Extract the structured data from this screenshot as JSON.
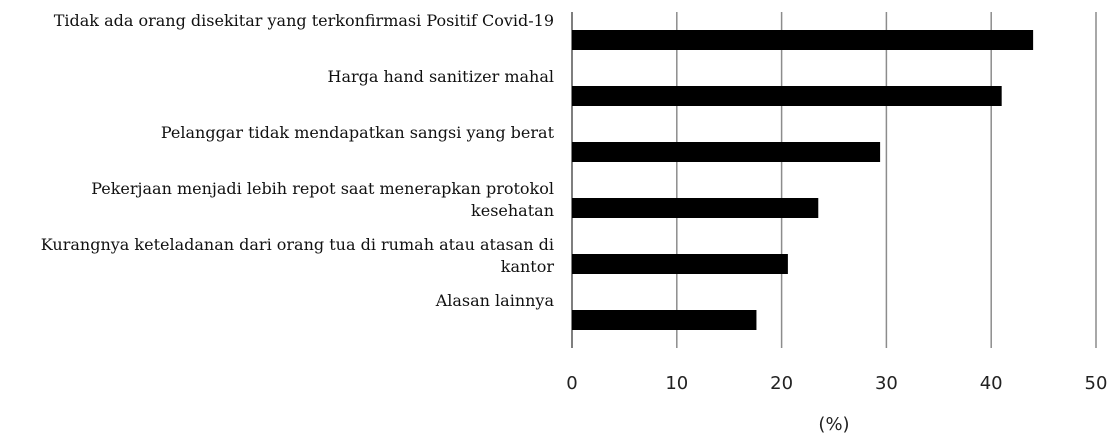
{
  "chart_data": {
    "type": "barh",
    "categories": [
      "Tidak ada orang disekitar yang terkonfirmasi Positif Covid-19",
      "Harga hand sanitizer mahal",
      "Pelanggar tidak mendapatkan sangsi yang berat",
      "Pekerjaan menjadi lebih repot saat menerapkan protokol kesehatan",
      "Kurangnya keteladanan dari orang tua di rumah atau atasan di kantor",
      "Alasan lainnya"
    ],
    "values": [
      44,
      41,
      29.4,
      23.5,
      20.6,
      17.6
    ],
    "color": "#000000",
    "xlabel": "(%)",
    "xlim": [
      0,
      50
    ],
    "xticks": [
      0,
      10,
      20,
      30,
      40,
      50
    ],
    "grid": true
  }
}
